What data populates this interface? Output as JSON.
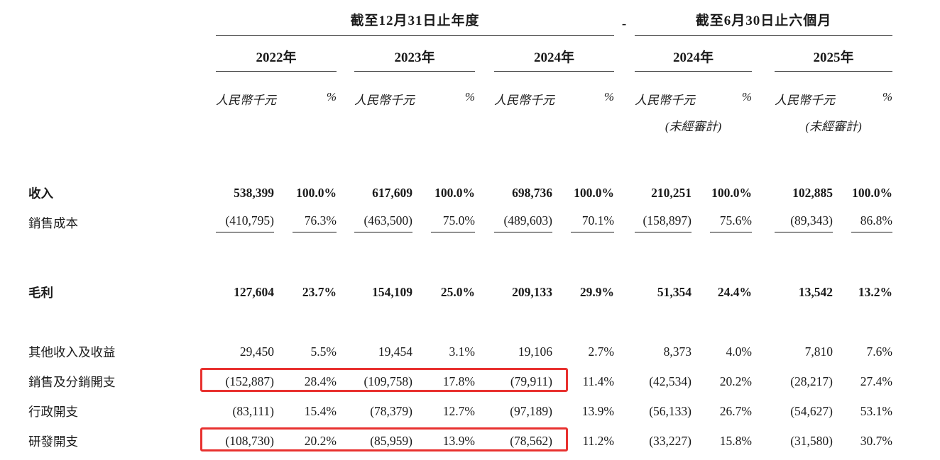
{
  "table": {
    "group_headers": [
      "截至12月31日止年度",
      "截至6月30日止六個月"
    ],
    "separator": "-",
    "years": [
      "2022年",
      "2023年",
      "2024年",
      "2024年",
      "2025年"
    ],
    "col_headers": {
      "amount": "人民幣千元",
      "percent": "%",
      "unaudited": "(未經審計)"
    },
    "rows": [
      {
        "label": "收入",
        "values": [
          "538,399",
          "100.0%",
          "617,609",
          "100.0%",
          "698,736",
          "100.0%",
          "210,251",
          "100.0%",
          "102,885",
          "100.0%"
        ]
      },
      {
        "label": "銷售成本",
        "values": [
          "(410,795)",
          "76.3%",
          "(463,500)",
          "75.0%",
          "(489,603)",
          "70.1%",
          "(158,897)",
          "75.6%",
          "(89,343)",
          "86.8%"
        ]
      },
      {
        "label": "毛利",
        "values": [
          "127,604",
          "23.7%",
          "154,109",
          "25.0%",
          "209,133",
          "29.9%",
          "51,354",
          "24.4%",
          "13,542",
          "13.2%"
        ]
      },
      {
        "label": "其他收入及收益",
        "values": [
          "29,450",
          "5.5%",
          "19,454",
          "3.1%",
          "19,106",
          "2.7%",
          "8,373",
          "4.0%",
          "7,810",
          "7.6%"
        ]
      },
      {
        "label": "銷售及分銷開支",
        "values": [
          "(152,887)",
          "28.4%",
          "(109,758)",
          "17.8%",
          "(79,911)",
          "11.4%",
          "(42,534)",
          "20.2%",
          "(28,217)",
          "27.4%"
        ]
      },
      {
        "label": "行政開支",
        "values": [
          "(83,111)",
          "15.4%",
          "(78,379)",
          "12.7%",
          "(97,189)",
          "13.9%",
          "(56,133)",
          "26.7%",
          "(54,627)",
          "53.1%"
        ]
      },
      {
        "label": "研發開支",
        "values": [
          "(108,730)",
          "20.2%",
          "(85,959)",
          "13.9%",
          "(78,562)",
          "11.2%",
          "(33,227)",
          "15.8%",
          "(31,580)",
          "30.7%"
        ]
      }
    ],
    "highlight_color": "#e8312f",
    "highlighted_rows": [
      "銷售及分銷開支",
      "研發開支"
    ]
  }
}
